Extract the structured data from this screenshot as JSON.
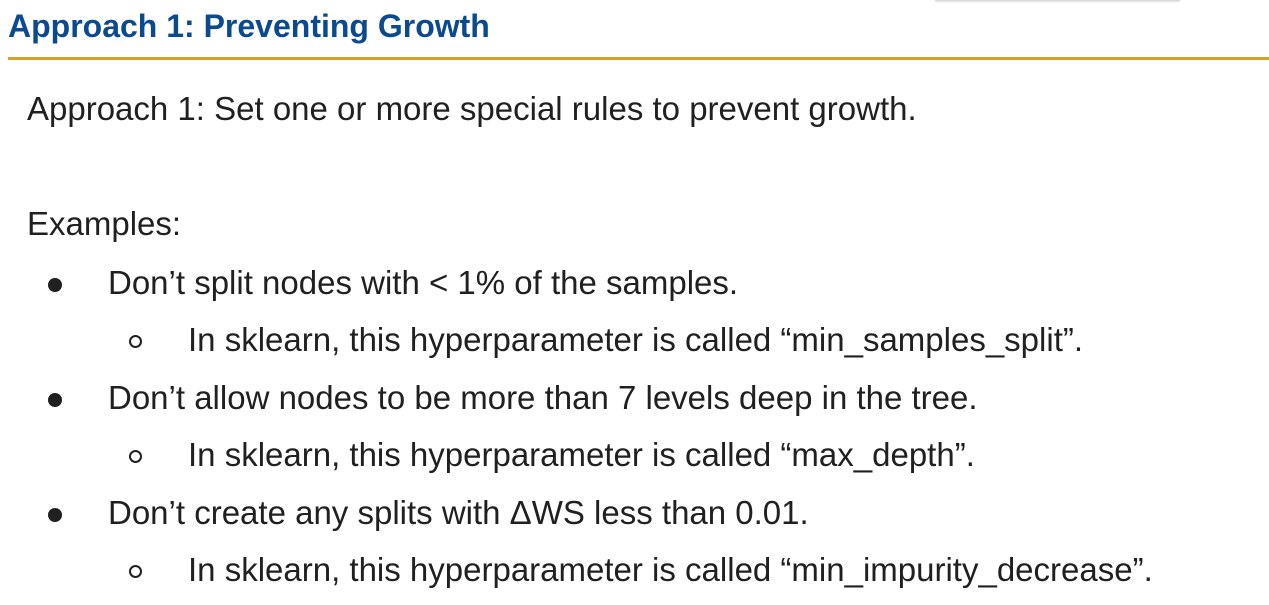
{
  "slide": {
    "title": "Approach 1: Preventing Growth",
    "intro": "Approach 1: Set one or more special rules to prevent growth.",
    "examples_heading": "Examples:",
    "bullets": [
      {
        "text": "Don’t split nodes with < 1% of the samples.",
        "sub": "In sklearn, this hyperparameter is called “min_samples_split”."
      },
      {
        "text": "Don’t allow nodes to be more than 7 levels deep in the tree.",
        "sub": "In sklearn, this hyperparameter is called “max_depth”."
      },
      {
        "text": "Don’t create any splits with ΔWS less than 0.01.",
        "sub": "In sklearn, this hyperparameter is called “min_impurity_decrease”."
      }
    ]
  },
  "colors": {
    "title": "#0b4a8f",
    "rule": "#d6a32a",
    "text": "#202020"
  }
}
